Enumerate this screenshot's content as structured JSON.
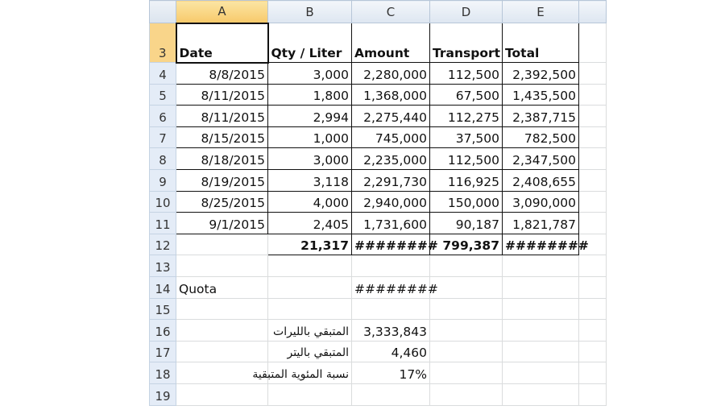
{
  "columns": [
    "A",
    "B",
    "C",
    "D",
    "E",
    ""
  ],
  "selected_column": "A",
  "rows": [
    {
      "n": "3",
      "cells": [
        "Date",
        "Qty / Liter",
        "Amount",
        "Transport",
        "Total",
        ""
      ]
    },
    {
      "n": "4",
      "cells": [
        "8/8/2015",
        "3,000",
        "2,280,000",
        "112,500",
        "2,392,500",
        ""
      ]
    },
    {
      "n": "5",
      "cells": [
        "8/11/2015",
        "1,800",
        "1,368,000",
        "67,500",
        "1,435,500",
        ""
      ]
    },
    {
      "n": "6",
      "cells": [
        "8/11/2015",
        "2,994",
        "2,275,440",
        "112,275",
        "2,387,715",
        ""
      ]
    },
    {
      "n": "7",
      "cells": [
        "8/15/2015",
        "1,000",
        "745,000",
        "37,500",
        "782,500",
        ""
      ]
    },
    {
      "n": "8",
      "cells": [
        "8/18/2015",
        "3,000",
        "2,235,000",
        "112,500",
        "2,347,500",
        ""
      ]
    },
    {
      "n": "9",
      "cells": [
        "8/19/2015",
        "3,118",
        "2,291,730",
        "116,925",
        "2,408,655",
        ""
      ]
    },
    {
      "n": "10",
      "cells": [
        "8/25/2015",
        "4,000",
        "2,940,000",
        "150,000",
        "3,090,000",
        ""
      ]
    },
    {
      "n": "11",
      "cells": [
        "9/1/2015",
        "2,405",
        "1,731,600",
        "90,187",
        "1,821,787",
        ""
      ]
    },
    {
      "n": "12",
      "cells": [
        "",
        "21,317",
        "########",
        "799,387",
        "########",
        ""
      ]
    },
    {
      "n": "13",
      "cells": [
        "",
        "",
        "",
        "",
        "",
        ""
      ]
    },
    {
      "n": "14",
      "cells": [
        "Quota",
        "",
        "########",
        "",
        "",
        ""
      ]
    },
    {
      "n": "15",
      "cells": [
        "",
        "",
        "",
        "",
        "",
        ""
      ]
    },
    {
      "n": "16",
      "cells": [
        "",
        "المتبقي بالليرات",
        "3,333,843",
        "",
        "",
        ""
      ]
    },
    {
      "n": "17",
      "cells": [
        "",
        "المتبقي باليتر",
        "4,460",
        "",
        "",
        ""
      ]
    },
    {
      "n": "18",
      "cells": [
        "",
        "نسبة المئوية المتبقية",
        "17%",
        "",
        "",
        ""
      ]
    },
    {
      "n": "19",
      "cells": [
        "",
        "",
        "",
        "",
        "",
        ""
      ]
    }
  ]
}
